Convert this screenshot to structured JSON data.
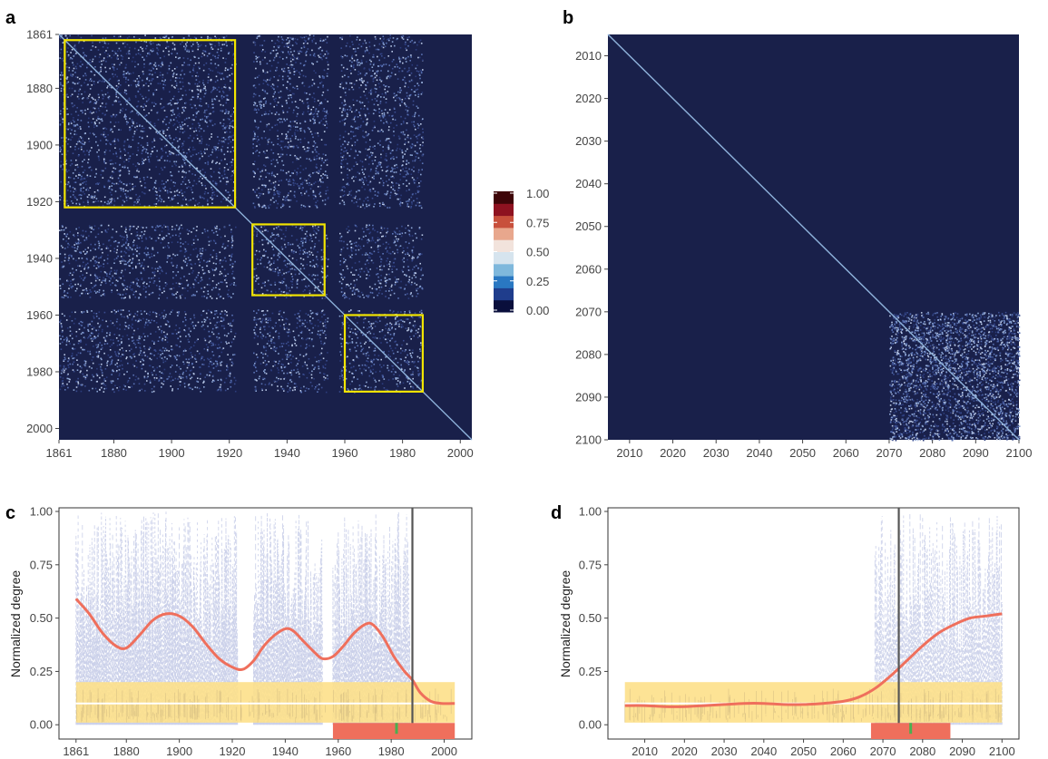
{
  "colors": {
    "heat_bg": "#19204a",
    "highlight_box": "#f2e500",
    "band": "#fde08a",
    "band_line": "#ffffff",
    "raw_lines": "#c9cfe9",
    "smooth": "#ef6f5c",
    "bar": "#ef6f5c",
    "marker": "#4caf50",
    "vline": "#555555"
  },
  "legend": {
    "ticks": [
      "1.00",
      "0.75",
      "0.50",
      "0.25",
      "0.00"
    ],
    "colors": [
      "#0a0f3c",
      "#1f3d8c",
      "#2a78c2",
      "#7fb8dc",
      "#d6e4ee",
      "#f2e3dc",
      "#e8a78d",
      "#c8503c",
      "#8e1220",
      "#3e0508"
    ]
  },
  "chart_data": [
    {
      "id": "a",
      "panel_label": "a",
      "type": "heatmap",
      "x_range": [
        1861,
        2004
      ],
      "y_range": [
        1861,
        2004
      ],
      "x_ticks": [
        "1861",
        "1880",
        "1900",
        "1920",
        "1940",
        "1960",
        "1980",
        "2000"
      ],
      "y_ticks": [
        "1861",
        "1880",
        "1900",
        "1920",
        "1940",
        "1960",
        "1980",
        "2000"
      ],
      "value_range": [
        0,
        1
      ],
      "highlight_boxes": [
        [
          1863,
          1922
        ],
        [
          1928,
          1953
        ],
        [
          1960,
          1987
        ]
      ],
      "active_blocks": [
        [
          1861,
          1922
        ],
        [
          1928,
          1954
        ],
        [
          1958,
          1987
        ]
      ]
    },
    {
      "id": "b",
      "panel_label": "b",
      "type": "heatmap",
      "x_range": [
        2005,
        2100
      ],
      "y_range": [
        2005,
        2100
      ],
      "x_ticks": [
        "2010",
        "2020",
        "2030",
        "2040",
        "2050",
        "2060",
        "2070",
        "2080",
        "2090",
        "2100"
      ],
      "y_ticks": [
        "2010",
        "2020",
        "2030",
        "2040",
        "2050",
        "2060",
        "2070",
        "2080",
        "2090",
        "2100"
      ],
      "value_range": [
        0,
        1
      ],
      "active_region": [
        2070,
        2100
      ]
    },
    {
      "id": "c",
      "panel_label": "c",
      "type": "line",
      "ylabel": "Normalized degree",
      "x_range": [
        1861,
        2004
      ],
      "ylim": [
        0,
        1
      ],
      "x_ticks": [
        "1861",
        "1880",
        "1900",
        "1920",
        "1940",
        "1960",
        "1980",
        "2000"
      ],
      "y_ticks": [
        "0.00",
        "0.25",
        "0.50",
        "0.75",
        "1.00"
      ],
      "band": [
        0.01,
        0.2
      ],
      "band_center": 0.1,
      "vline_x": 1988,
      "bar_range": [
        1958,
        2004
      ],
      "marker_x": 1982,
      "smooth": {
        "x": [
          1861,
          1866,
          1871,
          1876,
          1880,
          1885,
          1890,
          1895,
          1900,
          1905,
          1910,
          1915,
          1920,
          1924,
          1928,
          1932,
          1936,
          1940,
          1943,
          1947,
          1951,
          1954,
          1958,
          1962,
          1966,
          1970,
          1973,
          1977,
          1981,
          1985,
          1988,
          1991,
          1995,
          1999,
          2004
        ],
        "y": [
          0.59,
          0.52,
          0.43,
          0.37,
          0.36,
          0.42,
          0.49,
          0.52,
          0.51,
          0.46,
          0.38,
          0.31,
          0.27,
          0.26,
          0.3,
          0.37,
          0.42,
          0.45,
          0.44,
          0.39,
          0.34,
          0.31,
          0.32,
          0.37,
          0.43,
          0.47,
          0.47,
          0.41,
          0.32,
          0.25,
          0.21,
          0.15,
          0.11,
          0.1,
          0.1
        ]
      },
      "raw_segments": [
        [
          1861,
          1922
        ],
        [
          1928,
          1954
        ],
        [
          1958,
          1987
        ]
      ]
    },
    {
      "id": "d",
      "panel_label": "d",
      "type": "line",
      "ylabel": "Normalized degree",
      "x_range": [
        2005,
        2100
      ],
      "ylim": [
        0,
        1
      ],
      "x_ticks": [
        "2010",
        "2020",
        "2030",
        "2040",
        "2050",
        "2060",
        "2070",
        "2080",
        "2090",
        "2100"
      ],
      "y_ticks": [
        "0.00",
        "0.25",
        "0.50",
        "0.75",
        "1.00"
      ],
      "band": [
        0.01,
        0.2
      ],
      "band_center": 0.1,
      "vline_x": 2074,
      "bar_range": [
        2067,
        2087
      ],
      "marker_x": 2077,
      "smooth": {
        "x": [
          2005,
          2010,
          2015,
          2020,
          2025,
          2030,
          2035,
          2040,
          2045,
          2050,
          2055,
          2060,
          2064,
          2068,
          2072,
          2076,
          2080,
          2084,
          2088,
          2092,
          2096,
          2100
        ],
        "y": [
          0.09,
          0.09,
          0.085,
          0.085,
          0.09,
          0.095,
          0.1,
          0.1,
          0.095,
          0.095,
          0.1,
          0.11,
          0.13,
          0.17,
          0.23,
          0.3,
          0.37,
          0.43,
          0.47,
          0.5,
          0.51,
          0.52
        ]
      },
      "raw_segments": [
        [
          2068,
          2100
        ]
      ]
    }
  ]
}
